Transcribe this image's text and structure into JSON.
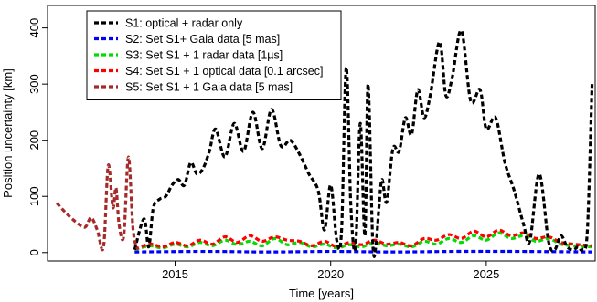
{
  "chart_data": {
    "type": "line",
    "xlabel": "Time [years]",
    "ylabel": "Position uncertainty [km]",
    "xlim": [
      2010.9,
      2028.5
    ],
    "ylim": [
      -15,
      440
    ],
    "xticks": [
      2015,
      2020,
      2025
    ],
    "yticks": [
      0,
      100,
      200,
      300,
      400
    ],
    "grid": false,
    "legend_position": "top-left",
    "series": [
      {
        "name": "S1: optical + radar only",
        "color": "#000000",
        "x": [
          2013.7,
          2014.0,
          2014.15,
          2014.3,
          2014.5,
          2014.7,
          2014.9,
          2015.1,
          2015.3,
          2015.5,
          2015.7,
          2015.9,
          2016.1,
          2016.3,
          2016.6,
          2016.9,
          2017.2,
          2017.5,
          2017.8,
          2018.1,
          2018.4,
          2018.7,
          2019.0,
          2019.3,
          2019.6,
          2019.8,
          2020.0,
          2020.2,
          2020.35,
          2020.5,
          2020.65,
          2020.8,
          2020.95,
          2021.1,
          2021.2,
          2021.35,
          2021.45,
          2021.55,
          2021.65,
          2021.8,
          2022.0,
          2022.2,
          2022.4,
          2022.6,
          2022.8,
          2023.0,
          2023.2,
          2023.5,
          2023.7,
          2023.9,
          2024.2,
          2024.5,
          2024.8,
          2025.0,
          2025.3,
          2025.6,
          2025.9,
          2026.2,
          2026.4,
          2026.7,
          2027.0,
          2027.2,
          2027.4,
          2027.6,
          2027.8,
          2027.95,
          2028.1,
          2028.25,
          2028.4
        ],
        "y": [
          5,
          60,
          10,
          80,
          95,
          100,
          120,
          130,
          120,
          160,
          140,
          150,
          180,
          220,
          170,
          230,
          180,
          250,
          185,
          255,
          190,
          200,
          175,
          140,
          110,
          40,
          120,
          20,
          40,
          330,
          80,
          10,
          230,
          30,
          300,
          20,
          10,
          80,
          130,
          90,
          185,
          180,
          240,
          210,
          290,
          240,
          280,
          375,
          280,
          310,
          395,
          270,
          290,
          220,
          240,
          160,
          110,
          50,
          20,
          140,
          20,
          5,
          30,
          10,
          5,
          10,
          5,
          40,
          300
        ]
      },
      {
        "name": "S2: Set S1+ Gaia data [5 mas]",
        "color": "#0000ff",
        "x": [
          2013.7,
          2016.0,
          2018.0,
          2020.0,
          2022.0,
          2024.0,
          2026.0,
          2028.4
        ],
        "y": [
          1,
          2,
          1,
          2,
          1,
          2,
          2,
          1
        ]
      },
      {
        "name": "S3: Set S1 + 1 radar data [1µs]",
        "color": "#00dd00",
        "x": [
          2013.7,
          2014.2,
          2014.6,
          2015.0,
          2015.4,
          2015.8,
          2016.2,
          2016.6,
          2017.0,
          2017.4,
          2017.8,
          2018.2,
          2018.6,
          2019.0,
          2019.4,
          2019.8,
          2020.2,
          2020.6,
          2021.0,
          2021.4,
          2021.8,
          2022.2,
          2022.6,
          2023.0,
          2023.4,
          2023.8,
          2024.2,
          2024.6,
          2025.0,
          2025.4,
          2025.8,
          2026.2,
          2026.6,
          2027.0,
          2027.4,
          2027.8,
          2028.4
        ],
        "y": [
          5,
          12,
          8,
          15,
          10,
          18,
          12,
          22,
          14,
          20,
          12,
          25,
          14,
          18,
          10,
          15,
          8,
          14,
          10,
          18,
          12,
          15,
          10,
          20,
          15,
          25,
          18,
          30,
          22,
          35,
          25,
          30,
          20,
          25,
          15,
          12,
          10
        ]
      },
      {
        "name": "S4: Set S1 + 1 optical data [0.1 arcsec]",
        "color": "#ff0000",
        "x": [
          2013.7,
          2014.2,
          2014.6,
          2015.0,
          2015.4,
          2015.8,
          2016.2,
          2016.6,
          2017.0,
          2017.4,
          2017.8,
          2018.2,
          2018.6,
          2019.0,
          2019.4,
          2019.8,
          2020.2,
          2020.6,
          2021.0,
          2021.4,
          2021.8,
          2022.2,
          2022.6,
          2023.0,
          2023.4,
          2023.8,
          2024.2,
          2024.6,
          2025.0,
          2025.4,
          2025.8,
          2026.2,
          2026.6,
          2027.0,
          2027.4,
          2027.8,
          2028.4
        ],
        "y": [
          6,
          15,
          10,
          18,
          12,
          22,
          15,
          28,
          18,
          30,
          20,
          28,
          22,
          20,
          12,
          20,
          10,
          18,
          14,
          22,
          15,
          18,
          12,
          25,
          22,
          32,
          25,
          38,
          28,
          40,
          30,
          35,
          25,
          28,
          18,
          15,
          12
        ]
      },
      {
        "name": "S5: Set S1 + 1 Gaia data [5 mas]",
        "color": "#a52a2a",
        "x": [
          2011.2,
          2011.5,
          2011.8,
          2012.1,
          2012.3,
          2012.5,
          2012.7,
          2012.85,
          2013.0,
          2013.1,
          2013.2,
          2013.35,
          2013.5,
          2013.65,
          2013.8
        ],
        "y": [
          88,
          70,
          55,
          45,
          62,
          40,
          10,
          155,
          80,
          115,
          50,
          30,
          170,
          40,
          5
        ]
      }
    ]
  }
}
